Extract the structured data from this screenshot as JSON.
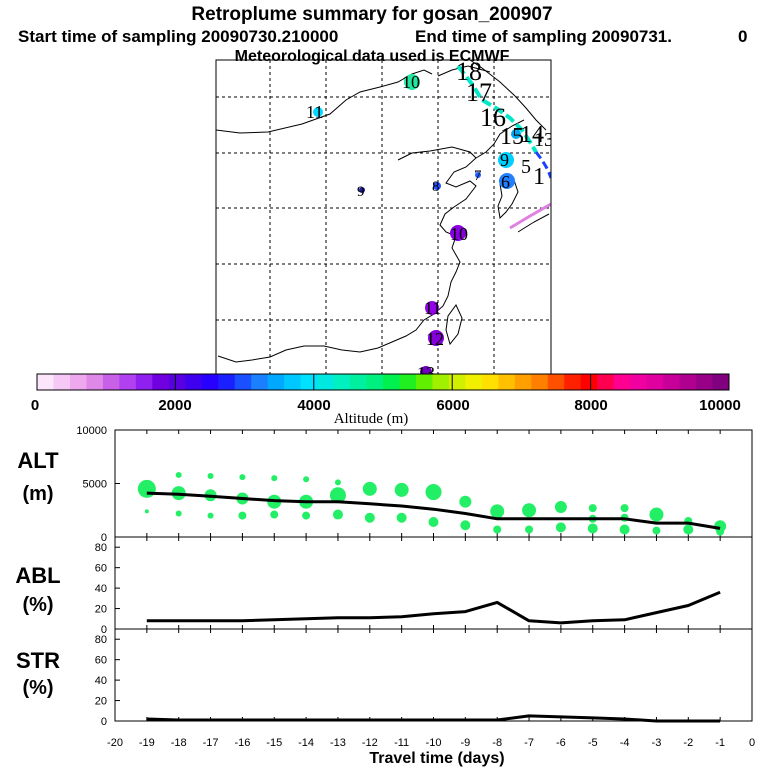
{
  "header": {
    "title": "Retroplume summary for gosan_200907",
    "start_label": "Start time of sampling 20090730.210000",
    "end_label": "End time of sampling 20090731.",
    "end_tail": "0",
    "met_label": "Meteorological data used is ECMWF"
  },
  "map": {
    "labels": [
      {
        "text": "18",
        "color": "#00e8c8"
      },
      {
        "text": "17",
        "color": "#00e8c8"
      },
      {
        "text": "16",
        "color": "#00c8e8"
      },
      {
        "text": "15",
        "color": "#00a8f0"
      },
      {
        "text": "14",
        "color": "#1060ff"
      },
      {
        "text": "13",
        "color": "#0050ff"
      },
      {
        "text": "1",
        "color": "#1e3cff"
      },
      {
        "text": "5",
        "color": "#2070ff"
      },
      {
        "text": "6",
        "color": "#2080ff"
      },
      {
        "text": "7",
        "color": "#2060ff"
      },
      {
        "text": "8",
        "color": "#1e50ff"
      },
      {
        "text": "9",
        "color": "#00d0ff"
      },
      {
        "text": "9",
        "color": "#1e1ea0"
      },
      {
        "text": "10",
        "color": "#20e8a0"
      },
      {
        "text": "10",
        "color": "#8800e0"
      },
      {
        "text": "11",
        "color": "#00d8ff"
      },
      {
        "text": "11",
        "color": "#9400e8"
      },
      {
        "text": "12",
        "color": "#8400d8"
      },
      {
        "text": "13",
        "color": "#7000c0"
      }
    ]
  },
  "colorbar": {
    "ticks": [
      "0",
      "2000",
      "4000",
      "6000",
      "8000",
      "10000"
    ],
    "label": "Altitude (m)",
    "colors": [
      "#fbe6fb",
      "#f6c8f6",
      "#eea8ee",
      "#e088e8",
      "#c860e8",
      "#b040f0",
      "#9020f0",
      "#7000e0",
      "#5800e0",
      "#4000f0",
      "#2800ff",
      "#1a20ff",
      "#1a50ff",
      "#1a80ff",
      "#00a8ff",
      "#00c8ff",
      "#00e0ff",
      "#00e8e0",
      "#00f0c0",
      "#00f0a0",
      "#00f080",
      "#00f050",
      "#20f020",
      "#60f000",
      "#a0f000",
      "#d0f000",
      "#f0f000",
      "#ffe000",
      "#ffc000",
      "#ffa000",
      "#ff8000",
      "#ff5000",
      "#ff2000",
      "#ff0000",
      "#ff0050",
      "#ff0090",
      "#f000a0",
      "#e000a0",
      "#c8009a",
      "#b00090",
      "#980088",
      "#800080"
    ]
  },
  "chart_data": [
    {
      "type": "line",
      "id": "altitude",
      "ylabel": "ALT",
      "yunit": "(m)",
      "ylim": [
        0,
        10000
      ],
      "ytick_labels": [
        "0",
        "5000",
        "10000"
      ],
      "x": [
        -19,
        -18,
        -17,
        -16,
        -15,
        -14,
        -13,
        -12,
        -11,
        -10,
        -9,
        -8,
        -7,
        -6,
        -5,
        -4,
        -3,
        -2,
        -1
      ],
      "mean": [
        4100,
        4000,
        3800,
        3600,
        3400,
        3300,
        3300,
        3100,
        2900,
        2600,
        2200,
        1700,
        1700,
        1700,
        1700,
        1700,
        1300,
        1300,
        800
      ],
      "plume_points": [
        {
          "x": -19,
          "y": 4500,
          "s": 9
        },
        {
          "x": -19,
          "y": 2400,
          "s": 2
        },
        {
          "x": -18,
          "y": 5800,
          "s": 3
        },
        {
          "x": -18,
          "y": 4100,
          "s": 7
        },
        {
          "x": -18,
          "y": 2200,
          "s": 3
        },
        {
          "x": -17,
          "y": 5700,
          "s": 3
        },
        {
          "x": -17,
          "y": 3900,
          "s": 6
        },
        {
          "x": -17,
          "y": 2000,
          "s": 3
        },
        {
          "x": -16,
          "y": 5600,
          "s": 3
        },
        {
          "x": -16,
          "y": 3600,
          "s": 6
        },
        {
          "x": -16,
          "y": 2000,
          "s": 4
        },
        {
          "x": -15,
          "y": 5500,
          "s": 3
        },
        {
          "x": -15,
          "y": 3300,
          "s": 7
        },
        {
          "x": -15,
          "y": 2100,
          "s": 4
        },
        {
          "x": -14,
          "y": 5400,
          "s": 3
        },
        {
          "x": -14,
          "y": 3300,
          "s": 7
        },
        {
          "x": -14,
          "y": 2000,
          "s": 4
        },
        {
          "x": -13,
          "y": 5100,
          "s": 3
        },
        {
          "x": -13,
          "y": 3900,
          "s": 8
        },
        {
          "x": -13,
          "y": 2100,
          "s": 5
        },
        {
          "x": -12,
          "y": 4500,
          "s": 7
        },
        {
          "x": -12,
          "y": 1800,
          "s": 5
        },
        {
          "x": -11,
          "y": 4400,
          "s": 7
        },
        {
          "x": -11,
          "y": 1800,
          "s": 5
        },
        {
          "x": -10,
          "y": 4200,
          "s": 8
        },
        {
          "x": -10,
          "y": 1400,
          "s": 5
        },
        {
          "x": -9,
          "y": 3300,
          "s": 6
        },
        {
          "x": -9,
          "y": 1100,
          "s": 5
        },
        {
          "x": -8,
          "y": 2400,
          "s": 7
        },
        {
          "x": -8,
          "y": 700,
          "s": 4
        },
        {
          "x": -7,
          "y": 2500,
          "s": 7
        },
        {
          "x": -7,
          "y": 700,
          "s": 4
        },
        {
          "x": -6,
          "y": 2800,
          "s": 6
        },
        {
          "x": -6,
          "y": 900,
          "s": 5
        },
        {
          "x": -5,
          "y": 2700,
          "s": 4
        },
        {
          "x": -5,
          "y": 1700,
          "s": 4
        },
        {
          "x": -5,
          "y": 800,
          "s": 5
        },
        {
          "x": -4,
          "y": 2700,
          "s": 4
        },
        {
          "x": -4,
          "y": 1800,
          "s": 4
        },
        {
          "x": -4,
          "y": 700,
          "s": 5
        },
        {
          "x": -3,
          "y": 2100,
          "s": 7
        },
        {
          "x": -3,
          "y": 600,
          "s": 4
        },
        {
          "x": -2,
          "y": 1500,
          "s": 4
        },
        {
          "x": -2,
          "y": 700,
          "s": 5
        },
        {
          "x": -1,
          "y": 1000,
          "s": 6
        },
        {
          "x": -1,
          "y": 500,
          "s": 4
        }
      ]
    },
    {
      "type": "line",
      "id": "abl",
      "ylabel": "ABL",
      "yunit": "(%)",
      "ylim": [
        0,
        90
      ],
      "ytick_labels": [
        "0",
        "20",
        "40",
        "60",
        "80"
      ],
      "x": [
        -19,
        -18,
        -17,
        -16,
        -15,
        -14,
        -13,
        -12,
        -11,
        -10,
        -9,
        -8,
        -7,
        -6,
        -5,
        -4,
        -3,
        -2,
        -1
      ],
      "values": [
        8,
        8,
        8,
        8,
        9,
        10,
        11,
        11,
        12,
        15,
        17,
        26,
        8,
        6,
        8,
        9,
        16,
        23,
        36
      ]
    },
    {
      "type": "line",
      "id": "str",
      "ylabel": "STR",
      "yunit": "(%)",
      "ylim": [
        0,
        90
      ],
      "ytick_labels": [
        "0",
        "20",
        "40",
        "60",
        "80"
      ],
      "x": [
        -19,
        -18,
        -17,
        -16,
        -15,
        -14,
        -13,
        -12,
        -11,
        -10,
        -9,
        -8,
        -7,
        -6,
        -5,
        -4,
        -3,
        -2,
        -1
      ],
      "values": [
        2,
        1,
        1,
        1,
        1,
        1,
        1,
        1,
        1,
        1,
        1,
        1,
        5,
        4,
        3,
        2,
        0,
        0,
        0
      ]
    }
  ],
  "x_axis": {
    "title": "Travel time (days)",
    "ticks": [
      "-20",
      "-19",
      "-18",
      "-17",
      "-16",
      "-15",
      "-14",
      "-13",
      "-12",
      "-11",
      "-10",
      "-9",
      "-8",
      "-7",
      "-6",
      "-5",
      "-4",
      "-3",
      "-2",
      "-1",
      "0"
    ],
    "values": [
      -20,
      -19,
      -18,
      -17,
      -16,
      -15,
      -14,
      -13,
      -12,
      -11,
      -10,
      -9,
      -8,
      -7,
      -6,
      -5,
      -4,
      -3,
      -2,
      -1,
      0
    ]
  }
}
